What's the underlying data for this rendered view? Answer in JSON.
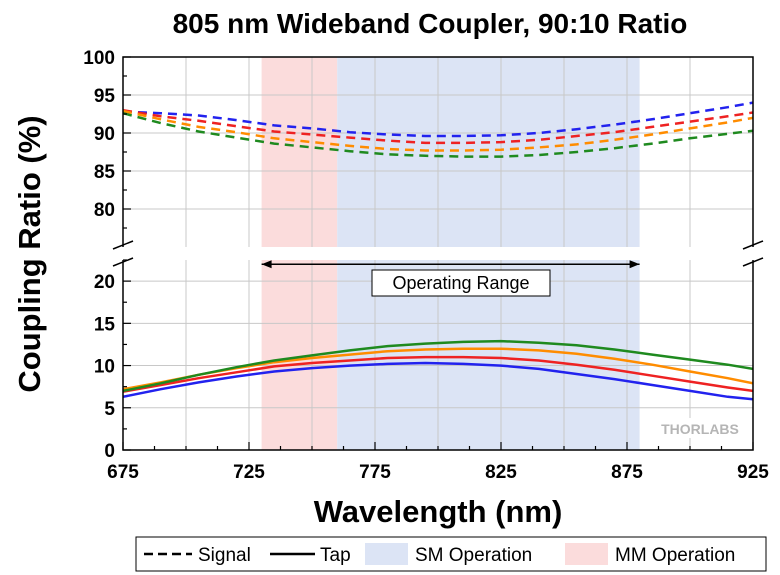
{
  "chart_data": {
    "type": "line",
    "title": "805 nm Wideband Coupler, 90:10 Ratio",
    "xlabel": "Wavelength (nm)",
    "ylabel": "Coupling Ratio (%)",
    "xlim": [
      675,
      925
    ],
    "x_ticks": [
      "675",
      "725",
      "775",
      "825",
      "875",
      "925"
    ],
    "y_axis_upper": {
      "ylim": [
        75,
        100
      ],
      "ticks": [
        "80",
        "85",
        "90",
        "95",
        "100"
      ]
    },
    "y_axis_lower": {
      "ylim": [
        0,
        22.5
      ],
      "ticks": [
        "0",
        "5",
        "10",
        "15",
        "20"
      ]
    },
    "axis_break": true,
    "grid": true,
    "regions": [
      {
        "name": "MM Operation",
        "x": [
          730,
          760
        ],
        "color": "#fbdcdc"
      },
      {
        "name": "SM Operation",
        "x": [
          760,
          880
        ],
        "color": "#dce4f5"
      }
    ],
    "annotation": {
      "text": "Operating Range",
      "x": [
        730,
        880
      ],
      "y": 22
    },
    "watermark": "THORLABS",
    "legend": {
      "placement": "bottom",
      "signal_label": "Signal",
      "tap_label": "Tap",
      "sm_label": "SM Operation",
      "mm_label": "MM Operation"
    },
    "x": [
      675,
      690,
      705,
      720,
      735,
      750,
      765,
      780,
      795,
      810,
      825,
      840,
      855,
      870,
      885,
      900,
      915,
      925
    ],
    "signal_series": [
      {
        "color": "#2222ee",
        "values": [
          92.8,
          92.6,
          92.3,
          91.7,
          91.0,
          90.6,
          90.1,
          89.8,
          89.6,
          89.6,
          89.7,
          90.0,
          90.5,
          91.1,
          91.8,
          92.6,
          93.4,
          94.0
        ]
      },
      {
        "color": "#ee2222",
        "values": [
          93.0,
          92.2,
          91.6,
          90.9,
          90.2,
          89.8,
          89.4,
          89.0,
          88.7,
          88.7,
          88.8,
          89.1,
          89.6,
          90.1,
          90.8,
          91.5,
          92.2,
          92.7
        ]
      },
      {
        "color": "#ff8c00",
        "values": [
          92.9,
          91.8,
          90.8,
          90.1,
          89.3,
          88.8,
          88.3,
          87.9,
          87.7,
          87.7,
          87.8,
          88.1,
          88.5,
          89.1,
          89.8,
          90.6,
          91.4,
          92.0
        ]
      },
      {
        "color": "#1f8a1f",
        "values": [
          92.6,
          91.3,
          90.2,
          89.4,
          88.6,
          88.1,
          87.6,
          87.2,
          87.0,
          86.9,
          86.9,
          87.1,
          87.5,
          88.0,
          88.6,
          89.3,
          89.9,
          90.3
        ]
      }
    ],
    "tap_series": [
      {
        "color": "#2222ee",
        "values": [
          6.3,
          7.2,
          8.0,
          8.7,
          9.3,
          9.7,
          10.0,
          10.2,
          10.3,
          10.2,
          10.0,
          9.6,
          9.0,
          8.4,
          7.7,
          7.0,
          6.3,
          6.0
        ]
      },
      {
        "color": "#ee2222",
        "values": [
          6.9,
          7.7,
          8.5,
          9.2,
          9.9,
          10.3,
          10.6,
          10.9,
          11.0,
          11.0,
          10.9,
          10.6,
          10.1,
          9.5,
          8.8,
          8.1,
          7.4,
          7.0
        ]
      },
      {
        "color": "#ff8c00",
        "values": [
          7.2,
          8.0,
          8.9,
          9.7,
          10.4,
          10.9,
          11.3,
          11.7,
          11.9,
          12.0,
          12.0,
          11.8,
          11.4,
          10.8,
          10.1,
          9.3,
          8.5,
          7.9
        ]
      },
      {
        "color": "#1f8a1f",
        "values": [
          7.0,
          7.9,
          8.9,
          9.8,
          10.6,
          11.2,
          11.8,
          12.3,
          12.6,
          12.8,
          12.9,
          12.7,
          12.4,
          11.9,
          11.3,
          10.7,
          10.1,
          9.6
        ]
      }
    ]
  }
}
